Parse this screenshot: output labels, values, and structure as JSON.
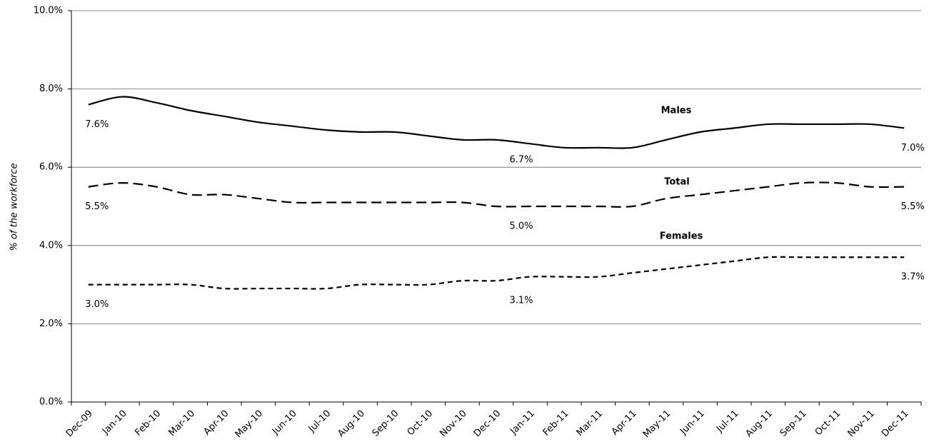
{
  "chart_data": {
    "type": "line",
    "y_label": "% of the workforce",
    "categories": [
      "Dec-09",
      "Jan-10",
      "Feb-10",
      "Mar-10",
      "Apr-10",
      "May-10",
      "Jun-10",
      "Jul-10",
      "Aug-10",
      "Sep-10",
      "Oct-10",
      "Nov-10",
      "Dec-10",
      "Jan-11",
      "Feb-11",
      "Mar-11",
      "Apr-11",
      "May-11",
      "Jun-11",
      "Jul-11",
      "Aug-11",
      "Sep-11",
      "Oct-11",
      "Nov-11",
      "Dec-11"
    ],
    "series": [
      {
        "name": "Males",
        "color": "#000000",
        "dash": "solid",
        "values": [
          7.6,
          7.8,
          7.65,
          7.45,
          7.3,
          7.15,
          7.05,
          6.95,
          6.9,
          6.9,
          6.8,
          6.7,
          6.7,
          6.6,
          6.5,
          6.5,
          6.5,
          6.7,
          6.9,
          7.0,
          7.1,
          7.1,
          7.1,
          7.1,
          7.0
        ],
        "value_labels": [
          "7.6%",
          null,
          null,
          null,
          null,
          null,
          null,
          null,
          null,
          null,
          null,
          null,
          "6.7%",
          null,
          null,
          null,
          null,
          null,
          null,
          null,
          null,
          null,
          null,
          null,
          "7.0%"
        ]
      },
      {
        "name": "Total",
        "color": "#000000",
        "dash": "long",
        "values": [
          5.5,
          5.6,
          5.5,
          5.3,
          5.3,
          5.2,
          5.1,
          5.1,
          5.1,
          5.1,
          5.1,
          5.1,
          5.0,
          5.0,
          5.0,
          5.0,
          5.0,
          5.2,
          5.3,
          5.4,
          5.5,
          5.6,
          5.6,
          5.5,
          5.5
        ],
        "value_labels": [
          "5.5%",
          null,
          null,
          null,
          null,
          null,
          null,
          null,
          null,
          null,
          null,
          null,
          "5.0%",
          null,
          null,
          null,
          null,
          null,
          null,
          null,
          null,
          null,
          null,
          null,
          "5.5%"
        ]
      },
      {
        "name": "Females",
        "color": "#000000",
        "dash": "short",
        "values": [
          3.0,
          3.0,
          3.0,
          3.0,
          2.9,
          2.9,
          2.9,
          2.9,
          3.0,
          3.0,
          3.0,
          3.1,
          3.1,
          3.2,
          3.2,
          3.2,
          3.3,
          3.4,
          3.5,
          3.6,
          3.7,
          3.7,
          3.7,
          3.7,
          3.7
        ],
        "value_labels": [
          "3.0%",
          null,
          null,
          null,
          null,
          null,
          null,
          null,
          null,
          null,
          null,
          null,
          "3.1%",
          null,
          null,
          null,
          null,
          null,
          null,
          null,
          null,
          null,
          null,
          null,
          "3.7%"
        ]
      }
    ],
    "ylim": [
      0,
      10
    ],
    "yticks": [
      {
        "value": 0,
        "label": "0.0%"
      },
      {
        "value": 2,
        "label": "2.0%"
      },
      {
        "value": 4,
        "label": "4.0%"
      },
      {
        "value": 6,
        "label": "6.0%"
      },
      {
        "value": 8,
        "label": "8.0%"
      },
      {
        "value": 10,
        "label": "10.0%"
      }
    ],
    "grid": true
  }
}
